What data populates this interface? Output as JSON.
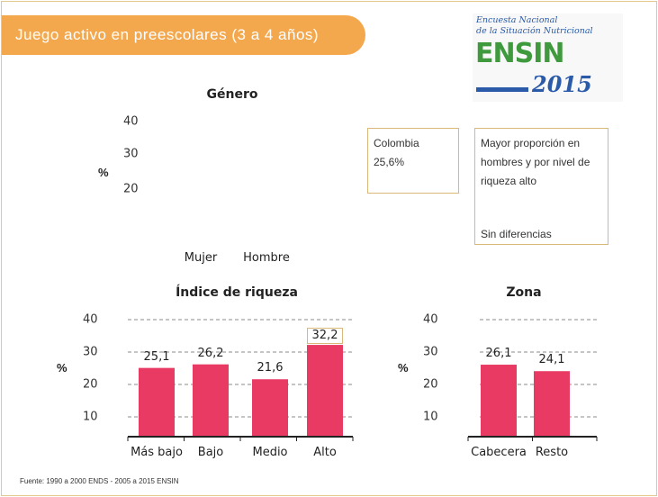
{
  "banner": {
    "title": "Juego activo en preescolares (3 a 4 años)",
    "color": "#f4a84e"
  },
  "logo": {
    "line1": "Encuesta Nacional",
    "line2": "de la Situación Nutricional",
    "brand": "ENSIN",
    "year": "2015"
  },
  "genero": {
    "title": "Género",
    "ylabel": "%",
    "ticks": [
      "40",
      "30",
      "20"
    ],
    "categories": [
      "Mujer",
      "Hombre"
    ]
  },
  "colombia_box": {
    "label": "Colombia",
    "value": "25,6%"
  },
  "notes_box": {
    "line1": "Mayor proporción en hombres y por nivel de riqueza alto",
    "line2": "Sin diferencias"
  },
  "chart_data": [
    {
      "type": "bar",
      "title": "Índice de riqueza",
      "ylabel": "%",
      "categories": [
        "Más bajo",
        "Bajo",
        "Medio",
        "Alto"
      ],
      "values": [
        25.1,
        26.2,
        21.6,
        32.2
      ],
      "value_labels": [
        "25,1",
        "26,2",
        "21,6",
        "32,2"
      ],
      "highlighted": "Alto",
      "yticks": [
        "10",
        "20",
        "30",
        "40"
      ],
      "ylim": [
        0,
        40
      ],
      "grid": true,
      "bar_color": "#e83a63"
    },
    {
      "type": "bar",
      "title": "Zona",
      "ylabel": "%",
      "categories": [
        "Cabecera",
        "Resto"
      ],
      "values": [
        26.1,
        24.1
      ],
      "value_labels": [
        "26,1",
        "24,1"
      ],
      "yticks": [
        "10",
        "20",
        "30",
        "40"
      ],
      "ylim": [
        0,
        40
      ],
      "grid": true,
      "bar_color": "#e83a63"
    }
  ],
  "source": "Fuente: 1990 a 2000 ENDS - 2005 a 2015 ENSIN"
}
